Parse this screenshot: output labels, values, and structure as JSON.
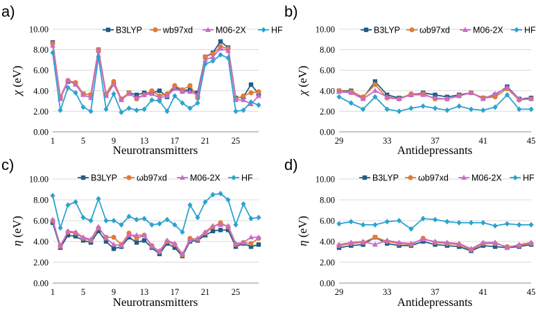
{
  "colors": {
    "B3LYP": "#1f5c8b",
    "wb97xd": "#e07b39",
    "M06-2X": "#c96cc9",
    "HF": "#2aa3cf"
  },
  "chart_data": [
    {
      "panel": "a)",
      "type": "line",
      "xlabel": "Neurotransmitters",
      "ylabel_symbol": "χ",
      "ylabel_unit": "(eV)",
      "ylim": [
        0,
        10
      ],
      "y_ticks": [
        "0.00",
        "2.00",
        "4.00",
        "6.00",
        "8.00",
        "10.00"
      ],
      "x_ticks": [
        "1",
        "5",
        "9",
        "13",
        "17",
        "21",
        "25"
      ],
      "x": [
        1,
        2,
        3,
        4,
        5,
        6,
        7,
        8,
        9,
        10,
        11,
        12,
        13,
        14,
        15,
        16,
        17,
        18,
        19,
        20,
        21,
        22,
        23,
        24,
        25,
        26,
        27,
        28
      ],
      "legend": [
        "B3LYP",
        "wb97xd",
        "M06-2X",
        "HF"
      ],
      "series": [
        {
          "name": "B3LYP",
          "values": [
            8.7,
            3.3,
            4.9,
            4.7,
            3.7,
            3.6,
            8.0,
            3.6,
            4.7,
            3.2,
            3.8,
            3.6,
            3.8,
            3.8,
            4.0,
            3.4,
            4.4,
            4.0,
            4.1,
            3.8,
            7.3,
            7.7,
            8.8,
            8.2,
            3.3,
            3.4,
            4.6,
            3.7
          ]
        },
        {
          "name": "wb97xd",
          "values": [
            8.6,
            3.4,
            5.0,
            4.8,
            3.7,
            3.6,
            8.0,
            3.7,
            4.9,
            3.2,
            3.8,
            3.2,
            3.6,
            4.0,
            3.5,
            3.7,
            4.5,
            4.1,
            4.5,
            3.3,
            7.3,
            7.6,
            8.3,
            8.1,
            3.2,
            3.5,
            3.8,
            3.9
          ]
        },
        {
          "name": "M06-2X",
          "values": [
            8.4,
            3.2,
            5.0,
            4.6,
            3.6,
            3.3,
            7.9,
            3.5,
            4.6,
            3.1,
            3.7,
            3.3,
            3.6,
            3.7,
            3.3,
            3.5,
            4.2,
            3.9,
            3.9,
            3.6,
            7.0,
            7.3,
            8.1,
            7.9,
            3.1,
            3.1,
            2.7,
            3.5
          ]
        },
        {
          "name": "HF",
          "values": [
            7.7,
            2.1,
            4.3,
            3.8,
            2.4,
            2.0,
            7.3,
            2.2,
            3.7,
            1.9,
            2.3,
            2.1,
            2.2,
            3.1,
            3.0,
            2.0,
            3.5,
            2.8,
            2.3,
            2.8,
            6.6,
            6.9,
            7.5,
            7.2,
            2.0,
            2.1,
            2.9,
            2.6
          ]
        }
      ]
    },
    {
      "panel": "b)",
      "type": "line",
      "xlabel": "Antidepressants",
      "ylabel_symbol": "χ",
      "ylabel_unit": "(eV)",
      "ylim": [
        0,
        10
      ],
      "y_ticks": [
        "0.00",
        "2.00",
        "4.00",
        "6.00",
        "8.00",
        "10.00"
      ],
      "x_ticks": [
        "29",
        "33",
        "37",
        "41",
        "45"
      ],
      "x": [
        29,
        30,
        31,
        32,
        33,
        34,
        35,
        36,
        37,
        38,
        39,
        40,
        41,
        42,
        43,
        44,
        45
      ],
      "legend": [
        "B3LYP",
        "ωb97xd",
        "M06-2X",
        "HF"
      ],
      "series": [
        {
          "name": "B3LYP",
          "values": [
            4.0,
            4.0,
            3.3,
            4.9,
            3.6,
            3.3,
            3.6,
            3.8,
            3.6,
            3.4,
            3.6,
            3.8,
            3.3,
            3.6,
            4.4,
            3.2,
            3.3
          ]
        },
        {
          "name": "ωb97xd",
          "values": [
            4.0,
            3.9,
            3.4,
            4.6,
            3.3,
            3.2,
            3.7,
            3.7,
            3.2,
            3.2,
            3.5,
            3.8,
            3.3,
            3.4,
            4.2,
            3.1,
            3.2
          ]
        },
        {
          "name": "M06-2X",
          "values": [
            3.9,
            3.8,
            3.2,
            4.0,
            3.4,
            3.2,
            3.6,
            3.6,
            3.3,
            3.2,
            3.5,
            3.8,
            3.2,
            3.7,
            4.3,
            3.2,
            3.2
          ]
        },
        {
          "name": "HF",
          "values": [
            3.4,
            2.8,
            2.2,
            3.4,
            2.2,
            2.0,
            2.3,
            2.5,
            2.3,
            2.1,
            2.5,
            2.2,
            2.1,
            2.4,
            3.6,
            2.2,
            2.2
          ]
        }
      ]
    },
    {
      "panel": "c)",
      "type": "line",
      "xlabel": "Neurotransmitters",
      "ylabel_symbol": "η",
      "ylabel_unit": "(eV)",
      "ylim": [
        0,
        10
      ],
      "y_ticks": [
        "0.00",
        "2.00",
        "4.00",
        "6.00",
        "8.00",
        "10.00"
      ],
      "x_ticks": [
        "1",
        "5",
        "9",
        "13",
        "17",
        "21",
        "25"
      ],
      "x": [
        1,
        2,
        3,
        4,
        5,
        6,
        7,
        8,
        9,
        10,
        11,
        12,
        13,
        14,
        15,
        16,
        17,
        18,
        19,
        20,
        21,
        22,
        23,
        24,
        25,
        26,
        27,
        28
      ],
      "legend": [
        "B3LYP",
        "ωb97xd",
        "M06-2X",
        "HF"
      ],
      "series": [
        {
          "name": "B3LYP",
          "values": [
            5.8,
            3.4,
            4.6,
            4.5,
            4.1,
            3.9,
            5.0,
            4.0,
            3.3,
            3.5,
            4.4,
            3.9,
            4.1,
            3.4,
            2.8,
            3.8,
            3.4,
            2.6,
            4.0,
            4.1,
            4.6,
            5.0,
            5.1,
            5.1,
            3.5,
            3.8,
            3.5,
            3.7
          ]
        },
        {
          "name": "ωb97xd",
          "values": [
            6.0,
            3.6,
            4.9,
            4.8,
            4.3,
            4.1,
            5.3,
            4.4,
            4.4,
            3.7,
            4.8,
            4.3,
            4.6,
            3.6,
            3.0,
            4.0,
            3.7,
            2.7,
            4.3,
            4.2,
            4.8,
            5.4,
            5.8,
            5.4,
            3.7,
            3.9,
            3.8,
            4.3
          ]
        },
        {
          "name": "M06-2X",
          "values": [
            6.1,
            3.5,
            5.0,
            4.9,
            4.4,
            4.2,
            5.4,
            4.3,
            3.7,
            3.6,
            4.6,
            4.6,
            4.6,
            3.5,
            3.1,
            4.1,
            3.8,
            2.8,
            4.1,
            4.3,
            4.9,
            5.5,
            5.6,
            5.5,
            3.8,
            3.9,
            4.4,
            4.4
          ]
        },
        {
          "name": "HF",
          "values": [
            8.4,
            5.3,
            7.5,
            7.8,
            6.3,
            6.0,
            8.1,
            6.0,
            6.0,
            5.6,
            6.4,
            6.1,
            6.2,
            5.6,
            5.7,
            6.1,
            5.6,
            4.9,
            7.5,
            6.3,
            7.8,
            8.5,
            8.6,
            8.0,
            5.6,
            7.6,
            6.2,
            6.3
          ]
        }
      ]
    },
    {
      "panel": "d)",
      "type": "line",
      "xlabel": "Antidepressants",
      "ylabel_symbol": "η",
      "ylabel_unit": "(eV)",
      "ylim": [
        0,
        10
      ],
      "y_ticks": [
        "0.00",
        "2.00",
        "4.00",
        "6.00",
        "8.00",
        "10.00"
      ],
      "x_ticks": [
        "29",
        "33",
        "37",
        "41",
        "45"
      ],
      "x": [
        29,
        30,
        31,
        32,
        33,
        34,
        35,
        36,
        37,
        38,
        39,
        40,
        41,
        42,
        43,
        44,
        45
      ],
      "legend": [
        "B3LYP",
        "ωb97xd",
        "M06-2X",
        "HF"
      ],
      "series": [
        {
          "name": "B3LYP",
          "values": [
            3.4,
            3.6,
            3.7,
            4.4,
            3.8,
            3.6,
            3.6,
            4.0,
            3.7,
            3.6,
            3.5,
            3.1,
            3.6,
            3.5,
            3.4,
            3.5,
            3.7
          ]
        },
        {
          "name": "ωb97xd",
          "values": [
            3.6,
            3.8,
            3.9,
            4.4,
            4.0,
            3.8,
            3.7,
            4.3,
            3.9,
            3.8,
            3.7,
            3.2,
            3.8,
            3.8,
            3.5,
            3.6,
            3.8
          ]
        },
        {
          "name": "M06-2X",
          "values": [
            3.7,
            3.9,
            4.0,
            3.7,
            4.1,
            3.9,
            3.8,
            4.2,
            4.0,
            3.9,
            3.8,
            3.3,
            3.9,
            3.9,
            3.4,
            3.7,
            3.9
          ]
        },
        {
          "name": "HF",
          "values": [
            5.7,
            5.9,
            5.6,
            5.6,
            5.9,
            6.0,
            5.2,
            6.2,
            6.1,
            5.9,
            5.8,
            5.8,
            5.8,
            5.5,
            5.7,
            5.6,
            5.6
          ]
        }
      ]
    }
  ]
}
